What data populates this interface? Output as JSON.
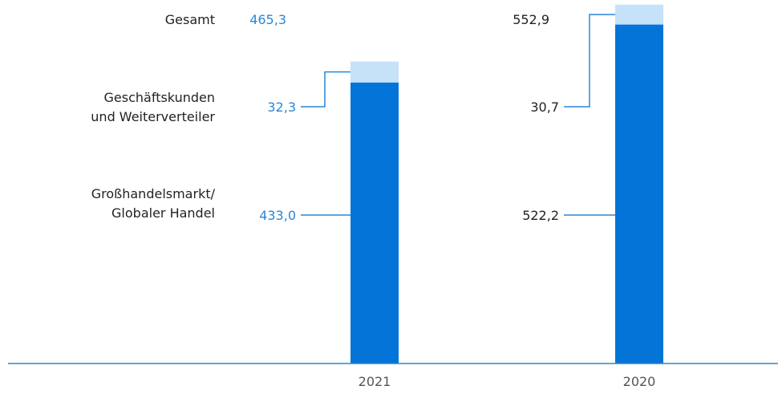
{
  "chart_data": {
    "type": "bar",
    "stacked": true,
    "categories": [
      "2021",
      "2020"
    ],
    "series": [
      {
        "name": "Großhandelsmarkt/ Globaler Handel",
        "values": [
          433.0,
          522.2
        ],
        "color": "#0474d8"
      },
      {
        "name": "Geschäftskunden und Weiterverteiler",
        "values": [
          32.3,
          30.7
        ],
        "color": "#c5e2f9"
      }
    ],
    "totals": [
      465.3,
      552.9
    ],
    "total_label": "Gesamt",
    "row_labels": {
      "total": "Gesamt",
      "business": [
        "Geschäftskunden",
        "und Weiterverteiler"
      ],
      "wholesale": [
        "Großhandelsmarkt/",
        "Globaler Handel"
      ]
    },
    "data_labels": {
      "2021": {
        "total": "465,3",
        "business": "32,3",
        "wholesale": "433,0"
      },
      "2020": {
        "total": "552,9",
        "business": "30,7",
        "wholesale": "522,2"
      }
    },
    "ylim": [
      0,
      560
    ],
    "grid": false,
    "legend": "none"
  },
  "colors": {
    "accent_2021": "#2a86d6",
    "text_2020": "#222222",
    "axis": "#2a86d6"
  }
}
